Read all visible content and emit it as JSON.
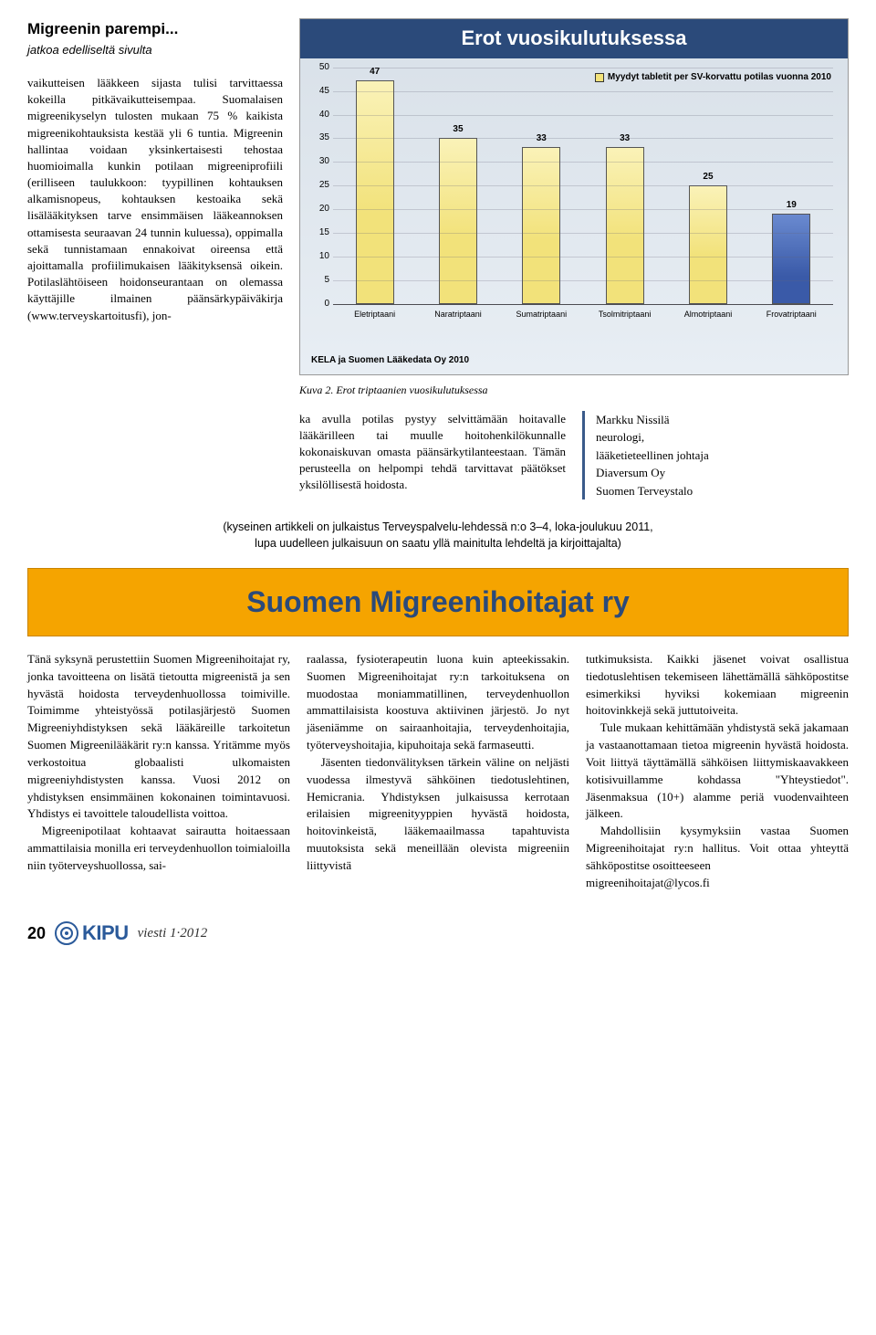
{
  "article": {
    "title": "Migreenin parempi...",
    "continuation": "jatkoa edelliseltä sivulta",
    "left_body": "vaikutteisen lääkkeen sijasta tulisi tarvittaessa kokeilla pitkävaikutteisempaa. Suomalaisen migreenikyselyn tulosten mukaan 75 % kaikista migreenikohtauksista kestää yli 6 tuntia. Migreenin hallintaa voidaan yksinkertaisesti tehostaa huomioimalla kunkin potilaan migreeniprofiili (erilliseen taulukkoon: tyypillinen kohtauksen alkamisnopeus, kohtauksen kestoaika sekä lisälääkityksen tarve ensimmäisen lääkeannoksen ottamisesta seuraavan 24 tunnin kuluessa), oppimalla sekä tunnistamaan ennakoivat oireensa että ajoittamalla profiilimukaisen lääkityksensä oikein. Potilaslähtöiseen hoidonseurantaan on olemassa käyttäjille ilmainen päänsärkypäiväkirja (www.terveyskartoitusfi), jon-",
    "lower_left": "ka avulla potilas pystyy selvittämään hoitavalle lääkärilleen tai muulle hoitohenkilökunnalle kokonaiskuvan omasta päänsärkytilanteestaan. Tämän perusteella on helpompi tehdä tarvittavat päätökset yksilöllisestä hoidosta."
  },
  "chart": {
    "title": "Erot vuosikulutuksessa",
    "legend": "Myydyt tabletit per SV-korvattu potilas vuonna 2010",
    "source": "KELA ja Suomen Lääkedata Oy 2010",
    "caption": "Kuva 2. Erot triptaanien vuosikulutuksessa",
    "ymax": 50,
    "ytick_step": 5,
    "background_gradient": [
      "#d8e0e8",
      "#e8eef4"
    ],
    "title_bg": "#2b4a7a",
    "title_color": "#ffffff",
    "categories": [
      "Eletriptaani",
      "Naratriptaani",
      "Sumatriptaani",
      "Tsolmitriptaani",
      "Almotriptaani",
      "Frovatriptaani"
    ],
    "values": [
      47,
      35,
      33,
      33,
      25,
      19
    ],
    "bar_colors": [
      "#f2e27a",
      "#f2e27a",
      "#f2e27a",
      "#f2e27a",
      "#f2e27a",
      "#3a5aa8"
    ],
    "bar_gradient_light": "#faf2b8",
    "legend_swatch": "#f2e27a",
    "grid_color": "rgba(100,100,120,0.25)",
    "label_fontsize": 9,
    "title_fontsize": 22
  },
  "author": {
    "name": "Markku Nissilä",
    "line2": "neurologi,",
    "line3": "lääketieteellinen johtaja",
    "line4": "Diaversum Oy",
    "line5": "Suomen Terveystalo"
  },
  "attribution": {
    "line1": "(kyseinen artikkeli on julkaistus Terveyspalvelu-lehdessä n:o 3–4, loka-joulukuu 2011,",
    "line2": "lupa uudelleen julkaisuun on saatu yllä mainitulta lehdeltä ja kirjoittajalta)"
  },
  "banner": {
    "title": "Suomen Migreenihoitajat ry",
    "bg": "#f5a400",
    "text_color": "#2b4a7a"
  },
  "cols": {
    "c1p1": "Tänä syksynä perustettiin Suomen Migreenihoitajat ry, jonka tavoitteena on lisätä tietoutta migreenistä ja sen hyvästä hoidosta terveydenhuollossa toimiville. Toimimme yhteistyössä potilasjärjestö Suomen Migreeniyhdistyksen sekä lääkäreille tarkoitetun Suomen Migreenilääkärit ry:n kanssa. Yritämme myös verkostoitua globaalisti ulkomaisten migreeniyhdistysten kanssa. Vuosi 2012 on yhdistyksen ensimmäinen kokonainen toimintavuosi. Yhdistys ei tavoittele taloudellista voittoa.",
    "c1p2": "Migreenipotilaat kohtaavat sairautta hoitaessaan ammattilaisia monilla eri terveydenhuollon toimialoilla niin työterveyshuollossa, sai-",
    "c2p1": "raalassa, fysioterapeutin luona kuin apteekissakin. Suomen Migreenihoitajat ry:n tarkoituksena on muodostaa moniammatillinen, terveydenhuollon ammattilaisista koostuva aktiivinen järjestö. Jo nyt jäseniämme on sairaanhoitajia, terveydenhoitajia, työterveyshoitajia, kipuhoitaja sekä farmaseutti.",
    "c2p2": "Jäsenten tiedonvälityksen tärkein väline on neljästi vuodessa ilmestyvä sähköinen tiedotuslehtinen, Hemicrania. Yhdistyksen julkaisussa kerrotaan erilaisien migreenityyppien hyvästä hoidosta, hoitovinkeistä, lääkemaailmassa tapahtuvista muutoksista sekä meneillään olevista migreeniin liittyvistä",
    "c3p1": "tutkimuksista. Kaikki jäsenet voivat osallistua tiedotuslehtisen tekemiseen lähettämällä sähköpostitse esimerkiksi hyviksi kokemiaan migreenin hoitovinkkejä sekä juttutoiveita.",
    "c3p2": "Tule mukaan kehittämään yhdistystä sekä jakamaan ja vastaanottamaan tietoa migreenin hyvästä hoidosta. Voit liittyä täyttämällä sähköisen liittymiskaavakkeen kotisivuillamme kohdassa \"Yhteystiedot\". Jäsenmaksua (10+) alamme periä vuodenvaihteen jälkeen.",
    "c3p3": "Mahdollisiin kysymyksiin vastaa Suomen Migreenihoitajat ry:n hallitus. Voit ottaa yhteyttä sähköpostitse osoitteeseen",
    "c3email": "migreenihoitajat@lycos.fi"
  },
  "footer": {
    "page": "20",
    "brand": "KIPU",
    "tagline": "viesti 1·2012"
  }
}
